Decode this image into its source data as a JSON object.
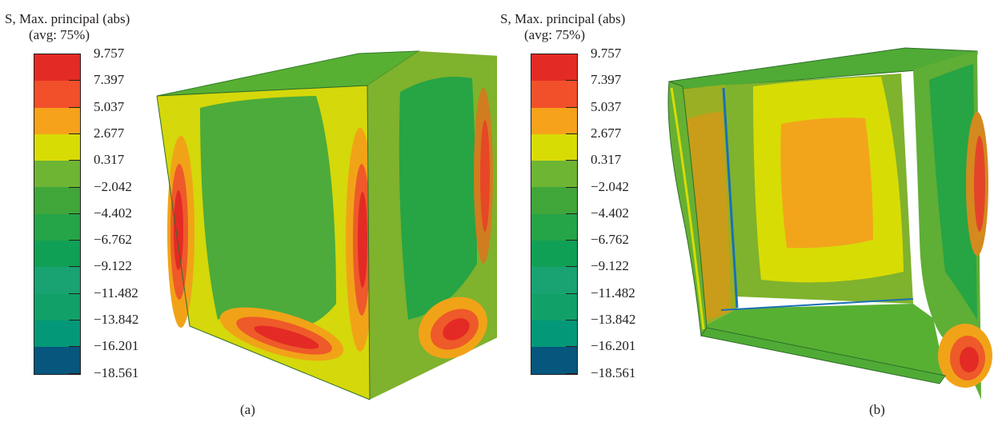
{
  "legend": {
    "title": "S, Max. principal (abs)",
    "subtitle": "(avg: 75%)",
    "ticks": [
      "9.757",
      "7.397",
      "5.037",
      "2.677",
      "0.317",
      "−2.042",
      "−4.402",
      "−6.762",
      "−9.122",
      "−11.482",
      "−13.842",
      "−16.201",
      "−18.561"
    ],
    "colors": [
      "#e42a24",
      "#f2502a",
      "#f7a21b",
      "#d8dc05",
      "#6eb534",
      "#40a63a",
      "#26a448",
      "#10a055",
      "#1aa372",
      "#11a168",
      "#039878",
      "#06567e",
      "#2b2d80"
    ]
  },
  "panels": [
    {
      "caption": "(a)"
    },
    {
      "caption": "(b)"
    }
  ]
}
